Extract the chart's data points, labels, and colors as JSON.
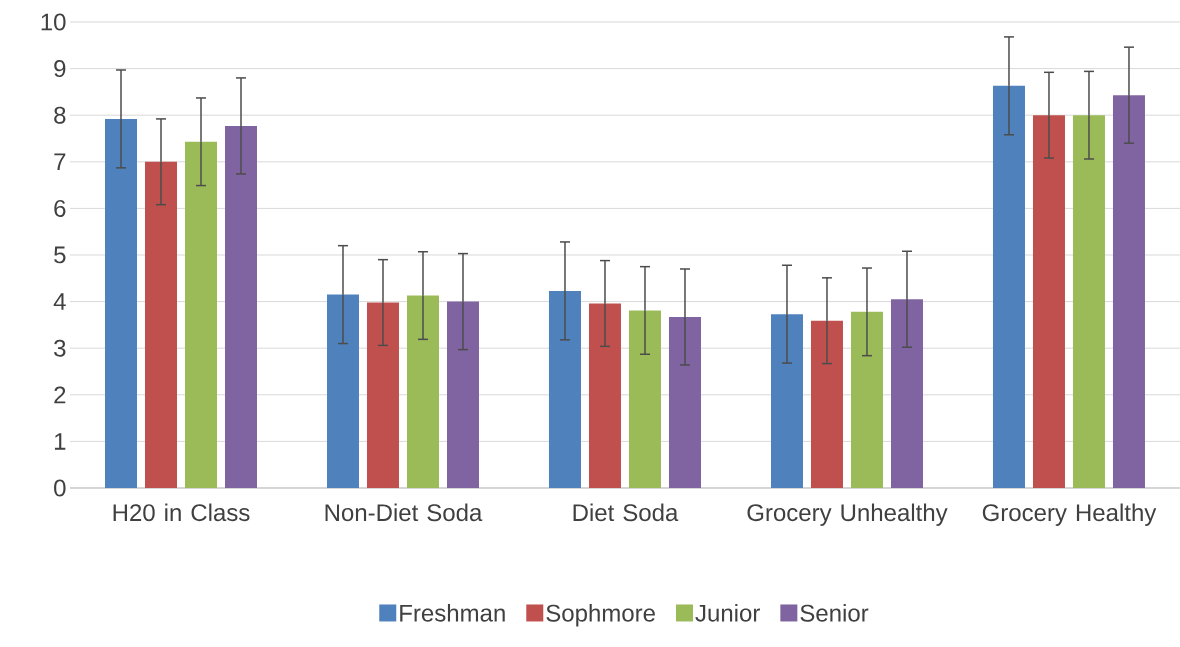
{
  "chart_data": {
    "type": "bar",
    "categories": [
      "H20 in Class",
      "Non-Diet Soda",
      "Diet Soda",
      "Grocery Unhealthy",
      "Grocery Healthy"
    ],
    "series": [
      {
        "name": "Freshman",
        "color": "#4f81bd",
        "values": [
          7.92,
          4.15,
          4.23,
          3.73,
          8.63
        ],
        "errors": [
          1.05,
          1.05,
          1.05,
          1.05,
          1.05
        ]
      },
      {
        "name": "Sophmore",
        "color": "#c0504d",
        "values": [
          7.0,
          3.98,
          3.96,
          3.59,
          8.0
        ],
        "errors": [
          0.92,
          0.92,
          0.92,
          0.92,
          0.92
        ]
      },
      {
        "name": "Junior",
        "color": "#9bbb59",
        "values": [
          7.43,
          4.13,
          3.81,
          3.78,
          8.0
        ],
        "errors": [
          0.94,
          0.94,
          0.94,
          0.94,
          0.94
        ]
      },
      {
        "name": "Senior",
        "color": "#8064a2",
        "values": [
          7.77,
          4.0,
          3.67,
          4.05,
          8.43
        ],
        "errors": [
          1.03,
          1.03,
          1.03,
          1.03,
          1.03
        ]
      }
    ],
    "ylim": [
      0,
      10
    ],
    "yticks": [
      0,
      1,
      2,
      3,
      4,
      5,
      6,
      7,
      8,
      9,
      10
    ],
    "grid": "y",
    "legend": "bottom"
  }
}
